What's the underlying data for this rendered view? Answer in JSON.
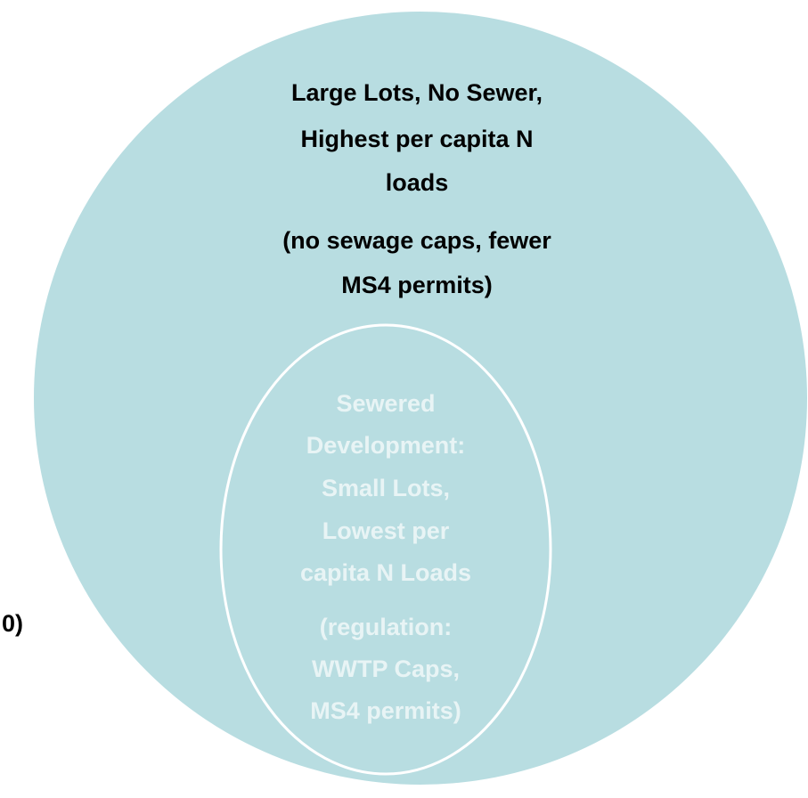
{
  "outer": {
    "label": [
      "Large Lots, No Sewer,",
      "Highest per capita N",
      "loads"
    ],
    "note": [
      "(no sewage caps, fewer",
      "MS4 permits)"
    ]
  },
  "inner": {
    "label": [
      "Sewered",
      "Development:",
      "Small Lots,",
      "Lowest per",
      "capita N Loads"
    ],
    "note": [
      "(regulation:",
      "WWTP Caps,",
      "MS4 permits)"
    ]
  },
  "side_label": "0)"
}
